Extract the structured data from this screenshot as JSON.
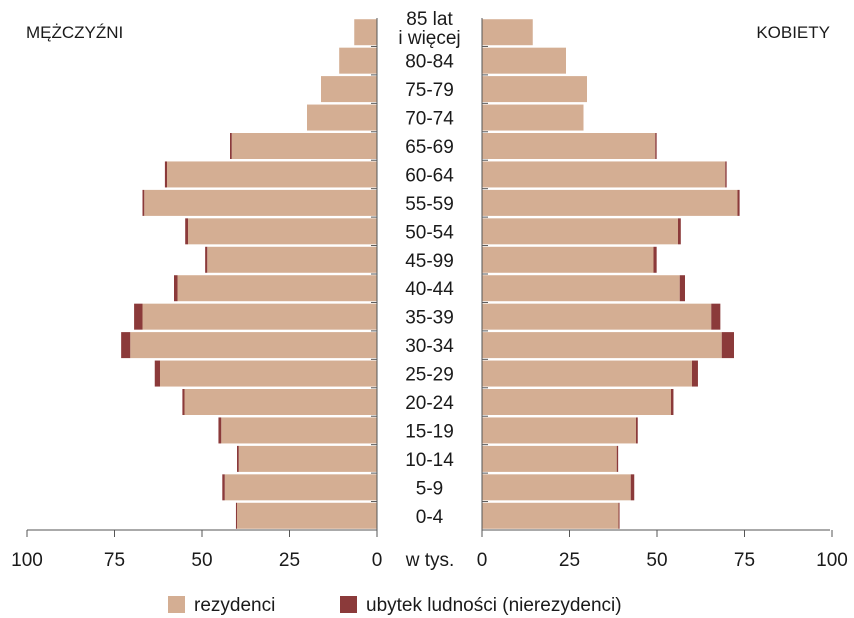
{
  "chart_data": {
    "type": "bar",
    "subtype": "population-pyramid",
    "left_label": "MĘŻCZYŹNI",
    "right_label": "KOBIETY",
    "axis_unit": "w tys.",
    "xlim": [
      0,
      100
    ],
    "ticks": [
      "0",
      "25",
      "50",
      "75",
      "100"
    ],
    "age_groups": [
      [
        "85 lat",
        "i więcej"
      ],
      "80-84",
      "75-79",
      "70-74",
      "65-69",
      "60-64",
      "55-59",
      "50-54",
      "45-99",
      "40-44",
      "35-39",
      "30-34",
      "25-29",
      "20-24",
      "15-19",
      "10-14",
      "5-9",
      "0-4"
    ],
    "series": [
      {
        "name": "rezydenci",
        "color": "#d4ae93",
        "men": [
          6.5,
          10.8,
          16,
          20,
          41.5,
          60,
          66.5,
          54,
          48.5,
          57,
          67,
          70.5,
          62,
          55,
          44.5,
          39.5,
          43.5,
          40
        ],
        "women": [
          14.5,
          24,
          30,
          29,
          49.5,
          69.5,
          73,
          56,
          49,
          56.5,
          65.5,
          68.5,
          60,
          54,
          44,
          38.5,
          42.5,
          39
        ]
      },
      {
        "name": "ubytek ludności (nierezydenci)",
        "color": "#8b3a3a",
        "men": [
          0,
          0,
          0,
          0,
          0.5,
          0.6,
          0.5,
          0.8,
          0.6,
          1,
          2.4,
          2.6,
          1.5,
          0.6,
          0.8,
          0.5,
          0.7,
          0.3
        ],
        "women": [
          0,
          0,
          0,
          0,
          0.4,
          0.4,
          0.6,
          0.8,
          0.9,
          1.5,
          2.6,
          3.5,
          1.7,
          0.7,
          0.5,
          0.4,
          1,
          0.3
        ]
      }
    ],
    "legend_position": "bottom",
    "grid": false
  }
}
